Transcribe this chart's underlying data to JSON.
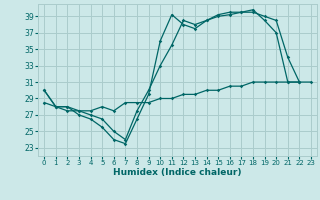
{
  "xlabel": "Humidex (Indice chaleur)",
  "ylabel": "",
  "bg_color": "#cce8e8",
  "grid_color": "#aacccc",
  "line_color": "#006666",
  "xlim": [
    -0.5,
    23.5
  ],
  "ylim": [
    22,
    40.5
  ],
  "yticks": [
    23,
    25,
    27,
    29,
    31,
    33,
    35,
    37,
    39
  ],
  "xticks": [
    0,
    1,
    2,
    3,
    4,
    5,
    6,
    7,
    8,
    9,
    10,
    11,
    12,
    13,
    14,
    15,
    16,
    17,
    18,
    19,
    20,
    21,
    22,
    23
  ],
  "line1_x": [
    0,
    1,
    2,
    3,
    4,
    5,
    6,
    7,
    8,
    9,
    10,
    11,
    12,
    13,
    14,
    15,
    16,
    17,
    18,
    19,
    20,
    21,
    22
  ],
  "line1_y": [
    30,
    28,
    28,
    27,
    26.5,
    25.5,
    24,
    23.5,
    26.5,
    29.5,
    36,
    39.2,
    38,
    37.5,
    38.5,
    39.2,
    39.5,
    39.5,
    39.8,
    38.5,
    37,
    31,
    31
  ],
  "line2_x": [
    0,
    1,
    2,
    3,
    4,
    5,
    6,
    7,
    8,
    9,
    10,
    11,
    12,
    13,
    14,
    15,
    16,
    17,
    18,
    19,
    20,
    21,
    22
  ],
  "line2_y": [
    30,
    28,
    28,
    27.5,
    27,
    26.5,
    25,
    24,
    27.5,
    30,
    33,
    35.5,
    38.5,
    38,
    38.5,
    39,
    39.2,
    39.5,
    39.5,
    39,
    38.5,
    34,
    31
  ],
  "line3_x": [
    0,
    1,
    2,
    3,
    4,
    5,
    6,
    7,
    8,
    9,
    10,
    11,
    12,
    13,
    14,
    15,
    16,
    17,
    18,
    19,
    20,
    21,
    22,
    23
  ],
  "line3_y": [
    28.5,
    28,
    27.5,
    27.5,
    27.5,
    28,
    27.5,
    28.5,
    28.5,
    28.5,
    29,
    29,
    29.5,
    29.5,
    30,
    30,
    30.5,
    30.5,
    31,
    31,
    31,
    31,
    31,
    31
  ]
}
